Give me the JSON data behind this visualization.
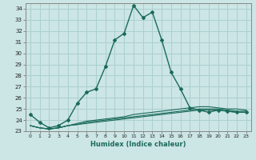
{
  "title": "",
  "xlabel": "Humidex (Indice chaleur)",
  "ylabel": "",
  "bg_color": "#cce5e5",
  "grid_color": "#aacfcf",
  "line_color": "#1a6b5a",
  "xlim": [
    -0.5,
    23.5
  ],
  "ylim": [
    23.0,
    34.5
  ],
  "yticks": [
    23,
    24,
    25,
    26,
    27,
    28,
    29,
    30,
    31,
    32,
    33,
    34
  ],
  "xticks": [
    0,
    1,
    2,
    3,
    4,
    5,
    6,
    7,
    8,
    9,
    10,
    11,
    12,
    13,
    14,
    15,
    16,
    17,
    18,
    19,
    20,
    21,
    22,
    23
  ],
  "main_series": [
    24.5,
    23.8,
    23.3,
    23.5,
    24.0,
    25.5,
    26.5,
    26.8,
    28.8,
    31.2,
    31.8,
    34.3,
    33.2,
    33.7,
    31.2,
    28.3,
    26.8,
    25.1,
    24.9,
    24.7,
    24.9,
    24.8,
    24.7,
    24.7
  ],
  "flat_series1": [
    23.5,
    23.3,
    23.2,
    23.3,
    23.5,
    23.6,
    23.7,
    23.8,
    23.9,
    24.0,
    24.1,
    24.2,
    24.3,
    24.4,
    24.5,
    24.6,
    24.7,
    24.8,
    24.9,
    24.9,
    24.9,
    24.8,
    24.7,
    24.7
  ],
  "flat_series2": [
    23.5,
    23.3,
    23.2,
    23.3,
    23.5,
    23.6,
    23.8,
    23.9,
    24.0,
    24.1,
    24.2,
    24.3,
    24.4,
    24.5,
    24.6,
    24.7,
    24.8,
    24.9,
    25.0,
    25.0,
    25.0,
    24.9,
    24.8,
    24.8
  ],
  "flat_series3": [
    23.5,
    23.3,
    23.2,
    23.3,
    23.5,
    23.7,
    23.9,
    24.0,
    24.1,
    24.2,
    24.3,
    24.5,
    24.6,
    24.7,
    24.8,
    24.9,
    25.0,
    25.1,
    25.2,
    25.2,
    25.1,
    25.0,
    25.0,
    24.9
  ]
}
